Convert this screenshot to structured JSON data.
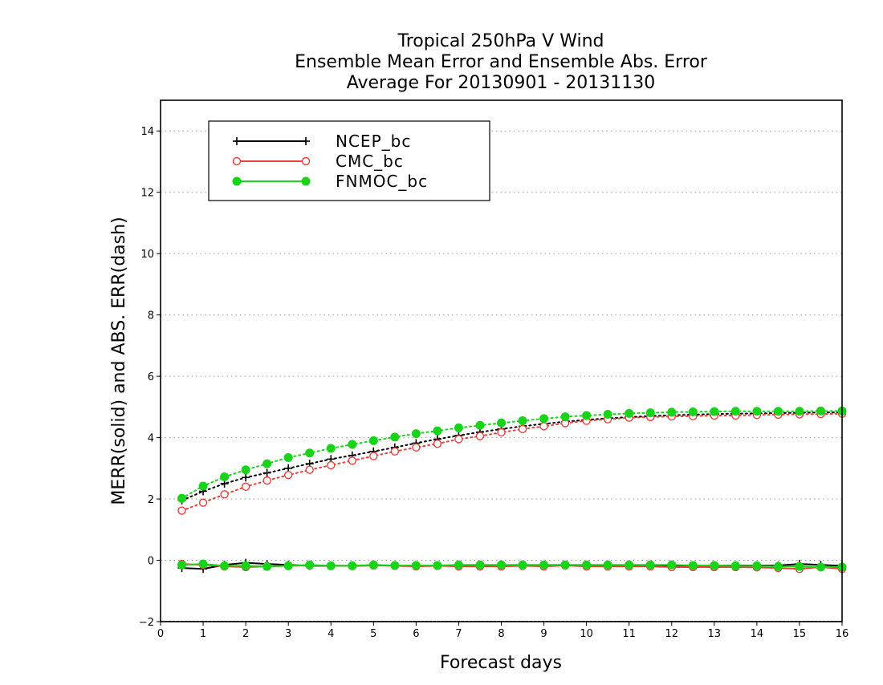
{
  "chart_data": {
    "type": "line",
    "title": [
      "Tropical 250hPa V Wind",
      "Ensemble Mean Error and Ensemble Abs. Error",
      "Average For 20130901 - 20131130"
    ],
    "xlabel": "Forecast days",
    "ylabel": "MERR(solid) and ABS. ERR(dash)",
    "xlim": [
      0,
      16
    ],
    "ylim": [
      -2,
      15
    ],
    "xticks": [
      0,
      1,
      2,
      3,
      4,
      5,
      6,
      7,
      8,
      9,
      10,
      11,
      12,
      13,
      14,
      15,
      16
    ],
    "yticks": [
      -2,
      0,
      2,
      4,
      6,
      8,
      10,
      12,
      14
    ],
    "grid": "horizontal dotted at y ticks",
    "legend_position": "top-left",
    "x": [
      0.5,
      1,
      1.5,
      2,
      2.5,
      3,
      3.5,
      4,
      4.5,
      5,
      5.5,
      6,
      6.5,
      7,
      7.5,
      8,
      8.5,
      9,
      9.5,
      10,
      10.5,
      11,
      11.5,
      12,
      12.5,
      13,
      13.5,
      14,
      14.5,
      15,
      15.5,
      16
    ],
    "series": [
      {
        "name": "NCEP_bc",
        "color": "#000000",
        "marker": "plus",
        "merr": [
          -0.25,
          -0.28,
          -0.15,
          -0.08,
          -0.12,
          -0.15,
          -0.18,
          -0.18,
          -0.18,
          -0.17,
          -0.17,
          -0.17,
          -0.17,
          -0.17,
          -0.17,
          -0.17,
          -0.17,
          -0.17,
          -0.17,
          -0.17,
          -0.17,
          -0.17,
          -0.17,
          -0.17,
          -0.17,
          -0.17,
          -0.17,
          -0.17,
          -0.17,
          -0.12,
          -0.15,
          -0.18
        ],
        "abs_err": [
          1.95,
          2.25,
          2.5,
          2.7,
          2.85,
          3.0,
          3.15,
          3.3,
          3.42,
          3.55,
          3.68,
          3.82,
          3.95,
          4.07,
          4.18,
          4.28,
          4.37,
          4.45,
          4.52,
          4.58,
          4.63,
          4.67,
          4.7,
          4.73,
          4.75,
          4.77,
          4.78,
          4.79,
          4.8,
          4.81,
          4.82,
          4.82
        ]
      },
      {
        "name": "CMC_bc",
        "color": "#e8413c",
        "marker": "open-circle",
        "merr": [
          -0.12,
          -0.15,
          -0.2,
          -0.22,
          -0.2,
          -0.18,
          -0.17,
          -0.18,
          -0.18,
          -0.17,
          -0.18,
          -0.2,
          -0.18,
          -0.2,
          -0.2,
          -0.2,
          -0.18,
          -0.2,
          -0.17,
          -0.2,
          -0.2,
          -0.2,
          -0.2,
          -0.22,
          -0.22,
          -0.22,
          -0.22,
          -0.23,
          -0.25,
          -0.28,
          -0.22,
          -0.28
        ],
        "abs_err": [
          1.62,
          1.88,
          2.15,
          2.4,
          2.6,
          2.78,
          2.95,
          3.1,
          3.25,
          3.4,
          3.55,
          3.68,
          3.8,
          3.95,
          4.05,
          4.17,
          4.28,
          4.37,
          4.47,
          4.55,
          4.6,
          4.65,
          4.67,
          4.69,
          4.7,
          4.72,
          4.72,
          4.74,
          4.75,
          4.76,
          4.77,
          4.78
        ]
      },
      {
        "name": "FNMOC_bc",
        "color": "#18d418",
        "marker": "filled-circle",
        "merr": [
          -0.15,
          -0.12,
          -0.18,
          -0.18,
          -0.2,
          -0.18,
          -0.15,
          -0.18,
          -0.18,
          -0.15,
          -0.17,
          -0.17,
          -0.17,
          -0.15,
          -0.15,
          -0.15,
          -0.15,
          -0.15,
          -0.15,
          -0.15,
          -0.15,
          -0.15,
          -0.15,
          -0.15,
          -0.17,
          -0.17,
          -0.18,
          -0.18,
          -0.2,
          -0.2,
          -0.22,
          -0.22
        ],
        "abs_err": [
          2.02,
          2.42,
          2.72,
          2.95,
          3.15,
          3.35,
          3.5,
          3.65,
          3.78,
          3.9,
          4.02,
          4.13,
          4.22,
          4.32,
          4.4,
          4.48,
          4.55,
          4.62,
          4.68,
          4.72,
          4.76,
          4.79,
          4.81,
          4.83,
          4.84,
          4.85,
          4.86,
          4.86,
          4.86,
          4.86,
          4.87,
          4.87
        ]
      }
    ]
  }
}
